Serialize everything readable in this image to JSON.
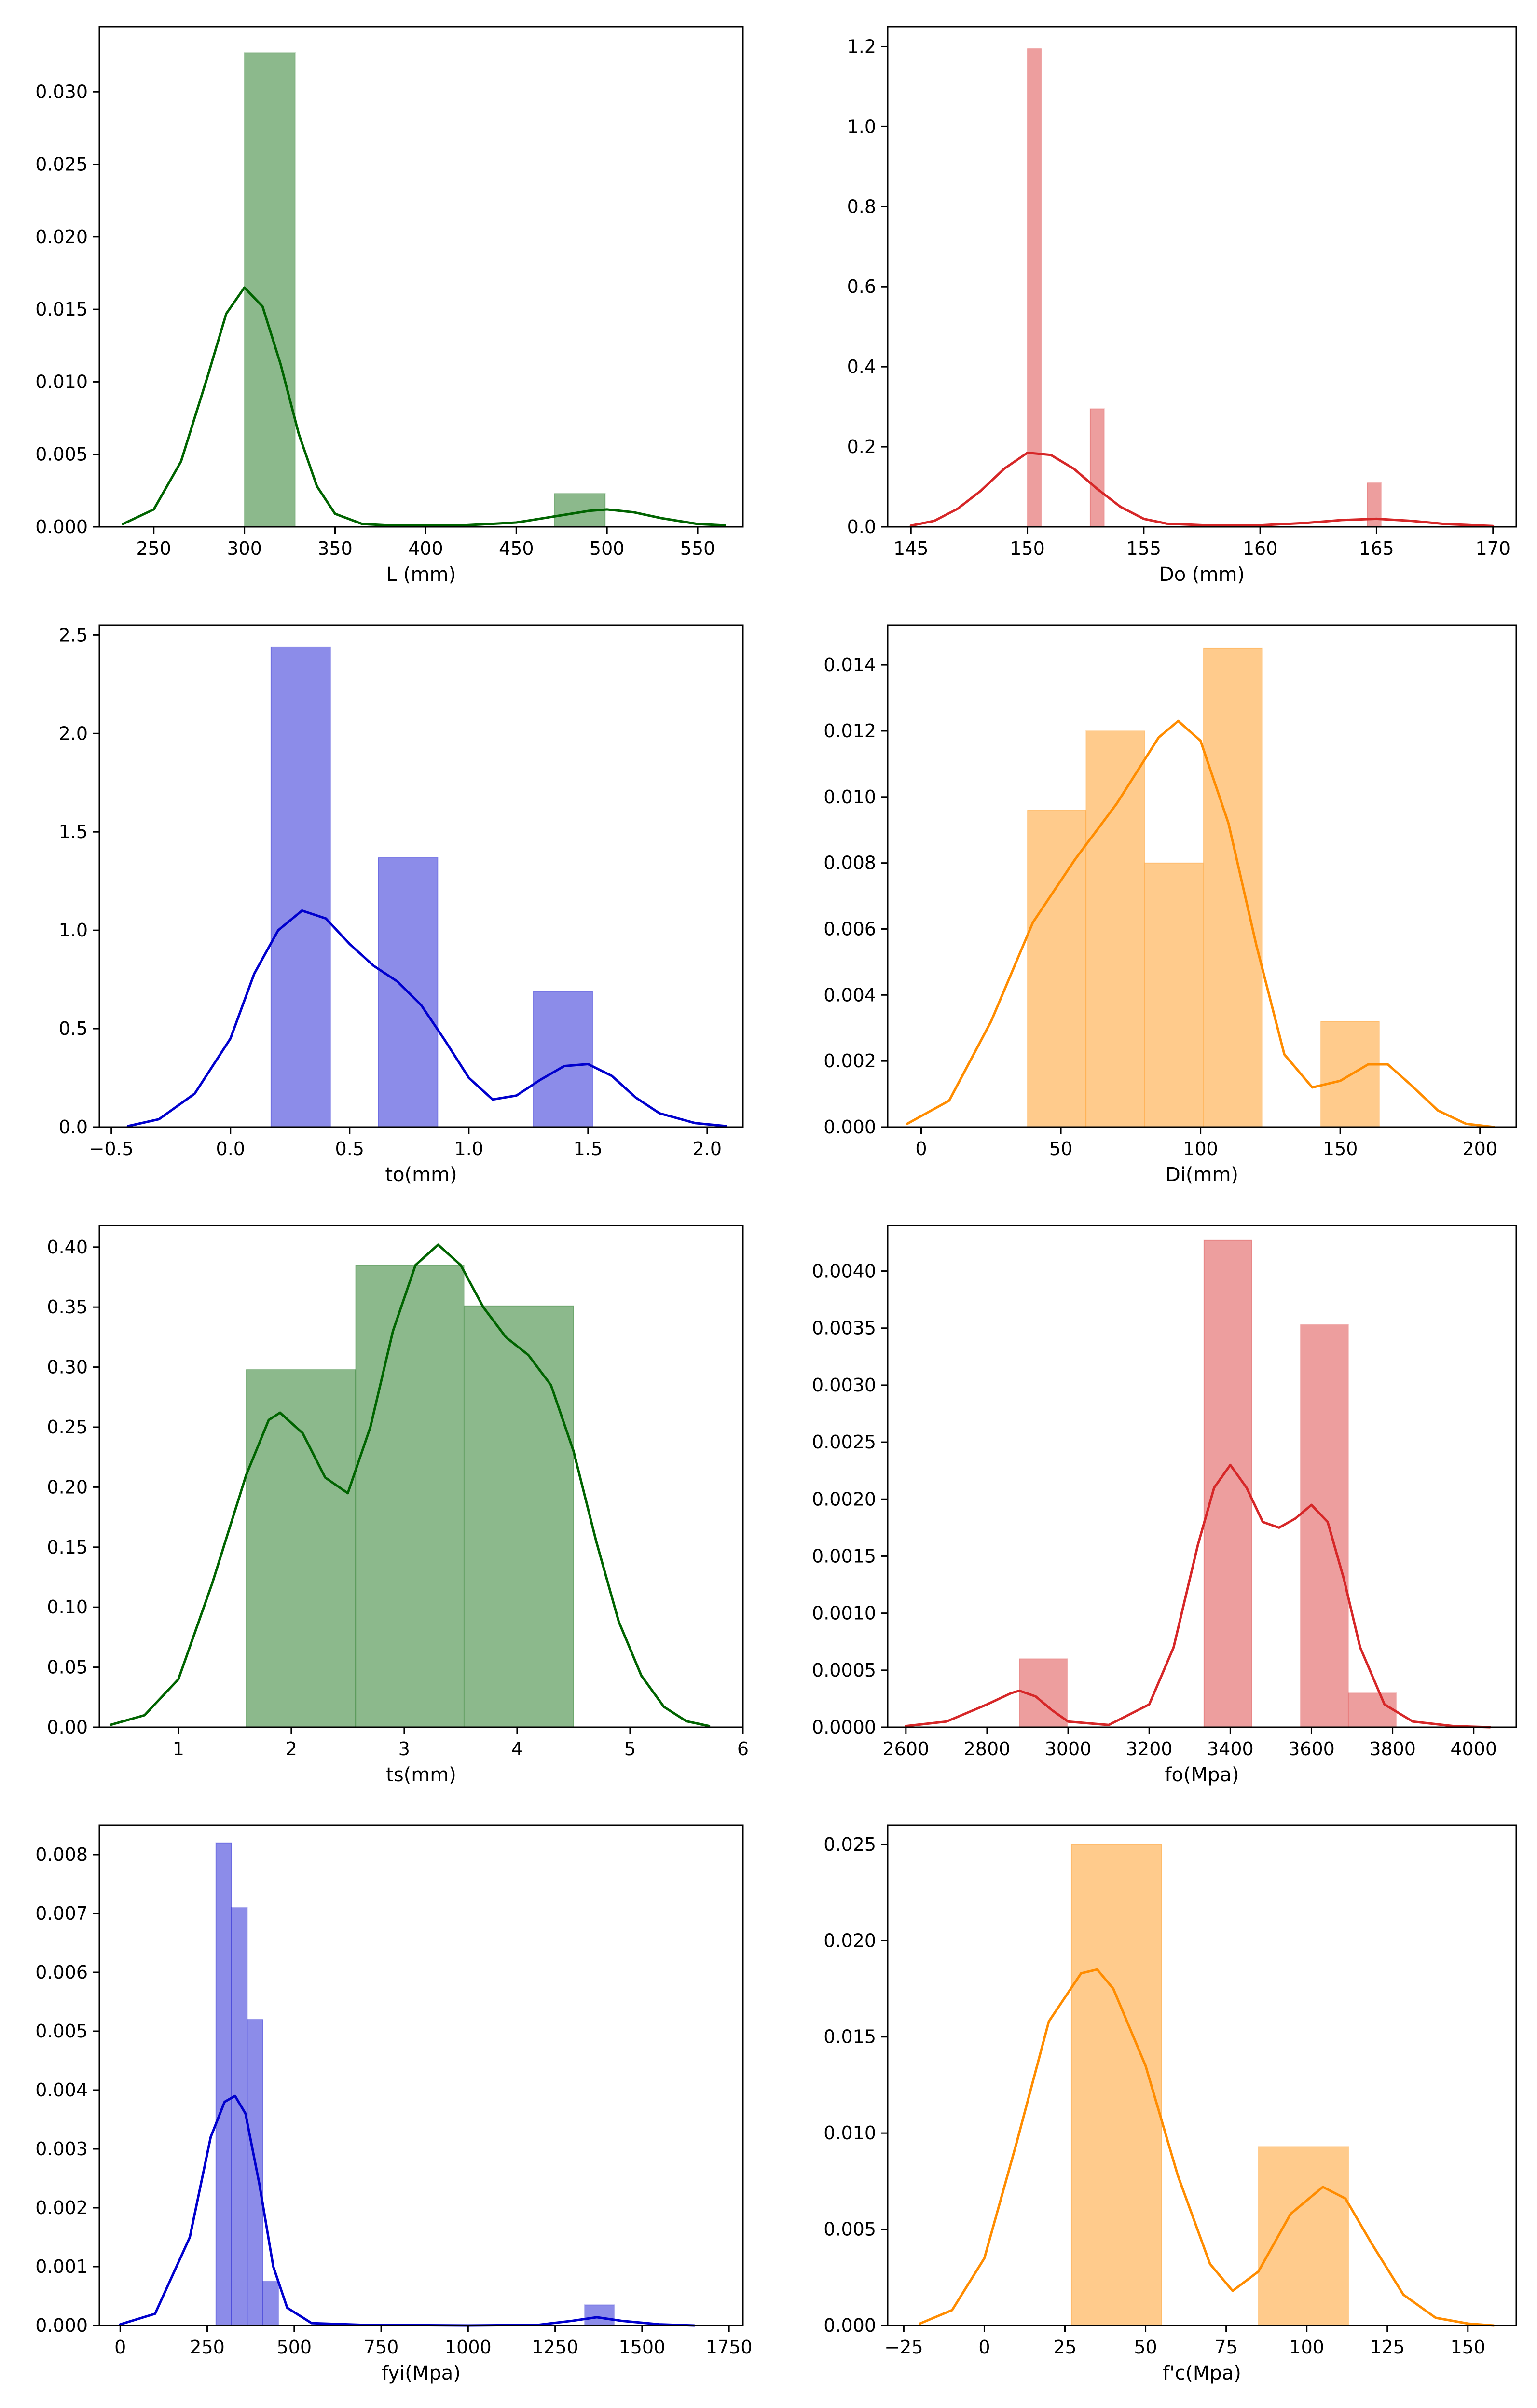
{
  "chart_data": [
    {
      "type": "histogram+kde",
      "xlabel": "L (mm)",
      "color": "#006400",
      "xlim": [
        220,
        575
      ],
      "ylim": [
        0,
        0.0345
      ],
      "xticks": [
        250,
        300,
        350,
        400,
        450,
        500,
        550
      ],
      "xtick_labels": [
        "250",
        "300",
        "350",
        "400",
        "450",
        "500",
        "550"
      ],
      "yticks": [
        0,
        0.005,
        0.01,
        0.015,
        0.02,
        0.025,
        0.03
      ],
      "ytick_labels": [
        "0.000",
        "0.005",
        "0.010",
        "0.015",
        "0.020",
        "0.025",
        "0.030"
      ],
      "bars": [
        {
          "x0": 300,
          "x1": 328,
          "height": 0.0327
        },
        {
          "x0": 471,
          "x1": 499,
          "height": 0.0023
        }
      ],
      "kde": [
        [
          233,
          0.0002
        ],
        [
          250,
          0.0012
        ],
        [
          265,
          0.0045
        ],
        [
          280,
          0.0105
        ],
        [
          290,
          0.0147
        ],
        [
          300,
          0.0165
        ],
        [
          310,
          0.0152
        ],
        [
          320,
          0.0112
        ],
        [
          330,
          0.0064
        ],
        [
          340,
          0.0028
        ],
        [
          350,
          0.0009
        ],
        [
          365,
          0.0002
        ],
        [
          380,
          0.0001
        ],
        [
          420,
          0.0001
        ],
        [
          450,
          0.0003
        ],
        [
          470,
          0.0007
        ],
        [
          490,
          0.0011
        ],
        [
          500,
          0.0012
        ],
        [
          515,
          0.001
        ],
        [
          530,
          0.0006
        ],
        [
          550,
          0.0002
        ],
        [
          565,
          0.0001
        ]
      ]
    },
    {
      "type": "histogram+kde",
      "xlabel": "Do (mm)",
      "color": "#d62728",
      "xlim": [
        144,
        171
      ],
      "ylim": [
        0,
        1.25
      ],
      "xticks": [
        145,
        150,
        155,
        160,
        165,
        170
      ],
      "xtick_labels": [
        "145",
        "150",
        "155",
        "160",
        "165",
        "170"
      ],
      "yticks": [
        0,
        0.2,
        0.4,
        0.6,
        0.8,
        1.0,
        1.2
      ],
      "ytick_labels": [
        "0.0",
        "0.2",
        "0.4",
        "0.6",
        "0.8",
        "1.0",
        "1.2"
      ],
      "bars": [
        {
          "x0": 150.0,
          "x1": 150.6,
          "height": 1.195
        },
        {
          "x0": 152.7,
          "x1": 153.3,
          "height": 0.295
        },
        {
          "x0": 164.6,
          "x1": 165.2,
          "height": 0.11
        }
      ],
      "kde": [
        [
          145,
          0.003
        ],
        [
          146,
          0.015
        ],
        [
          147,
          0.045
        ],
        [
          148,
          0.09
        ],
        [
          149,
          0.145
        ],
        [
          150,
          0.185
        ],
        [
          151,
          0.18
        ],
        [
          152,
          0.145
        ],
        [
          153,
          0.095
        ],
        [
          154,
          0.05
        ],
        [
          155,
          0.02
        ],
        [
          156,
          0.008
        ],
        [
          158,
          0.003
        ],
        [
          160,
          0.004
        ],
        [
          162,
          0.01
        ],
        [
          163.5,
          0.017
        ],
        [
          165,
          0.02
        ],
        [
          166.5,
          0.015
        ],
        [
          168,
          0.007
        ],
        [
          170,
          0.002
        ]
      ]
    },
    {
      "type": "histogram+kde",
      "xlabel": "to(mm)",
      "color": "#0000cd",
      "xlim": [
        -0.55,
        2.15
      ],
      "ylim": [
        0,
        2.55
      ],
      "xticks": [
        -0.5,
        0,
        0.5,
        1,
        1.5,
        2
      ],
      "xtick_labels": [
        "−0.5",
        "0.0",
        "0.5",
        "1.0",
        "1.5",
        "2.0"
      ],
      "yticks": [
        0,
        0.5,
        1,
        1.5,
        2,
        2.5
      ],
      "ytick_labels": [
        "0.0",
        "0.5",
        "1.0",
        "1.5",
        "2.0",
        "2.5"
      ],
      "bars": [
        {
          "x0": 0.17,
          "x1": 0.42,
          "height": 2.44
        },
        {
          "x0": 0.62,
          "x1": 0.87,
          "height": 1.37
        },
        {
          "x0": 1.27,
          "x1": 1.52,
          "height": 0.69
        }
      ],
      "kde": [
        [
          -0.43,
          0.005
        ],
        [
          -0.3,
          0.04
        ],
        [
          -0.15,
          0.17
        ],
        [
          0,
          0.45
        ],
        [
          0.1,
          0.78
        ],
        [
          0.2,
          1.0
        ],
        [
          0.3,
          1.1
        ],
        [
          0.4,
          1.06
        ],
        [
          0.5,
          0.93
        ],
        [
          0.6,
          0.82
        ],
        [
          0.7,
          0.74
        ],
        [
          0.8,
          0.62
        ],
        [
          0.9,
          0.44
        ],
        [
          1.0,
          0.25
        ],
        [
          1.1,
          0.14
        ],
        [
          1.2,
          0.16
        ],
        [
          1.3,
          0.24
        ],
        [
          1.4,
          0.31
        ],
        [
          1.5,
          0.32
        ],
        [
          1.6,
          0.26
        ],
        [
          1.7,
          0.15
        ],
        [
          1.8,
          0.07
        ],
        [
          1.95,
          0.02
        ],
        [
          2.08,
          0.005
        ]
      ]
    },
    {
      "type": "histogram+kde",
      "xlabel": "Di(mm)",
      "color": "#ff8c00",
      "xlim": [
        -12,
        213
      ],
      "ylim": [
        0,
        0.0152
      ],
      "xticks": [
        0,
        50,
        100,
        150,
        200
      ],
      "xtick_labels": [
        "0",
        "50",
        "100",
        "150",
        "200"
      ],
      "yticks": [
        0,
        0.002,
        0.004,
        0.006,
        0.008,
        0.01,
        0.012,
        0.014
      ],
      "ytick_labels": [
        "0.000",
        "0.002",
        "0.004",
        "0.006",
        "0.008",
        "0.010",
        "0.012",
        "0.014"
      ],
      "bars": [
        {
          "x0": 38,
          "x1": 59,
          "height": 0.0096
        },
        {
          "x0": 59,
          "x1": 80,
          "height": 0.012
        },
        {
          "x0": 80,
          "x1": 101,
          "height": 0.008
        },
        {
          "x0": 101,
          "x1": 122,
          "height": 0.0145
        },
        {
          "x0": 143,
          "x1": 164,
          "height": 0.0032
        }
      ],
      "kde": [
        [
          -5,
          0.0001
        ],
        [
          10,
          0.0008
        ],
        [
          25,
          0.0032
        ],
        [
          40,
          0.0062
        ],
        [
          55,
          0.0081
        ],
        [
          70,
          0.0098
        ],
        [
          85,
          0.0118
        ],
        [
          92,
          0.0123
        ],
        [
          100,
          0.0117
        ],
        [
          110,
          0.0092
        ],
        [
          120,
          0.0055
        ],
        [
          130,
          0.0022
        ],
        [
          140,
          0.0012
        ],
        [
          150,
          0.0014
        ],
        [
          160,
          0.0019
        ],
        [
          167,
          0.0019
        ],
        [
          175,
          0.0013
        ],
        [
          185,
          0.0005
        ],
        [
          195,
          0.0001
        ],
        [
          205,
          0.0
        ]
      ]
    },
    {
      "type": "histogram+kde",
      "xlabel": "ts(mm)",
      "color": "#006400",
      "xlim": [
        0.3,
        6.0
      ],
      "ylim": [
        0,
        0.418
      ],
      "xticks": [
        1,
        2,
        3,
        4,
        5,
        6
      ],
      "xtick_labels": [
        "1",
        "2",
        "3",
        "4",
        "5",
        "6"
      ],
      "yticks": [
        0,
        0.05,
        0.1,
        0.15,
        0.2,
        0.25,
        0.3,
        0.35,
        0.4
      ],
      "ytick_labels": [
        "0.00",
        "0.05",
        "0.10",
        "0.15",
        "0.20",
        "0.25",
        "0.30",
        "0.35",
        "0.40"
      ],
      "bars": [
        {
          "x0": 1.6,
          "x1": 2.57,
          "height": 0.298
        },
        {
          "x0": 2.57,
          "x1": 3.53,
          "height": 0.385
        },
        {
          "x0": 3.53,
          "x1": 4.5,
          "height": 0.351
        }
      ],
      "kde": [
        [
          0.4,
          0.002
        ],
        [
          0.7,
          0.01
        ],
        [
          1.0,
          0.04
        ],
        [
          1.3,
          0.12
        ],
        [
          1.6,
          0.21
        ],
        [
          1.8,
          0.256
        ],
        [
          1.9,
          0.262
        ],
        [
          2.1,
          0.245
        ],
        [
          2.3,
          0.208
        ],
        [
          2.5,
          0.195
        ],
        [
          2.7,
          0.25
        ],
        [
          2.9,
          0.33
        ],
        [
          3.1,
          0.385
        ],
        [
          3.3,
          0.402
        ],
        [
          3.5,
          0.385
        ],
        [
          3.7,
          0.35
        ],
        [
          3.9,
          0.325
        ],
        [
          4.1,
          0.31
        ],
        [
          4.3,
          0.285
        ],
        [
          4.5,
          0.23
        ],
        [
          4.7,
          0.155
        ],
        [
          4.9,
          0.088
        ],
        [
          5.1,
          0.043
        ],
        [
          5.3,
          0.017
        ],
        [
          5.5,
          0.005
        ],
        [
          5.7,
          0.001
        ]
      ]
    },
    {
      "type": "histogram+kde",
      "xlabel": "fo(Mpa)",
      "color": "#d62728",
      "xlim": [
        2555,
        4105
      ],
      "ylim": [
        0,
        0.0044
      ],
      "xticks": [
        2600,
        2800,
        3000,
        3200,
        3400,
        3600,
        3800,
        4000
      ],
      "xtick_labels": [
        "2600",
        "2800",
        "3000",
        "3200",
        "3400",
        "3600",
        "3800",
        "4000"
      ],
      "yticks": [
        0,
        0.0005,
        0.001,
        0.0015,
        0.002,
        0.0025,
        0.003,
        0.0035,
        0.004
      ],
      "ytick_labels": [
        "0.0000",
        "0.0005",
        "0.0010",
        "0.0015",
        "0.0020",
        "0.0025",
        "0.0030",
        "0.0035",
        "0.0040"
      ],
      "bars": [
        {
          "x0": 2880,
          "x1": 2998,
          "height": 0.0006
        },
        {
          "x0": 3335,
          "x1": 3453,
          "height": 0.00427
        },
        {
          "x0": 3573,
          "x1": 3691,
          "height": 0.00353
        },
        {
          "x0": 3691,
          "x1": 3809,
          "height": 0.0003
        }
      ],
      "kde": [
        [
          2600,
          1e-05
        ],
        [
          2700,
          5e-05
        ],
        [
          2800,
          0.0002
        ],
        [
          2860,
          0.0003
        ],
        [
          2880,
          0.00032
        ],
        [
          2920,
          0.00027
        ],
        [
          2960,
          0.00015
        ],
        [
          3000,
          5e-05
        ],
        [
          3100,
          2e-05
        ],
        [
          3200,
          0.0002
        ],
        [
          3260,
          0.0007
        ],
        [
          3320,
          0.0016
        ],
        [
          3360,
          0.0021
        ],
        [
          3400,
          0.0023
        ],
        [
          3440,
          0.0021
        ],
        [
          3480,
          0.0018
        ],
        [
          3520,
          0.00175
        ],
        [
          3560,
          0.00183
        ],
        [
          3600,
          0.00195
        ],
        [
          3640,
          0.0018
        ],
        [
          3680,
          0.0013
        ],
        [
          3720,
          0.0007
        ],
        [
          3780,
          0.0002
        ],
        [
          3850,
          5e-05
        ],
        [
          3950,
          1e-05
        ],
        [
          4040,
          0.0
        ]
      ]
    },
    {
      "type": "histogram+kde",
      "xlabel": "fyi(Mpa)",
      "color": "#0000cd",
      "xlim": [
        -60,
        1790
      ],
      "ylim": [
        0,
        0.0085
      ],
      "xticks": [
        0,
        250,
        500,
        750,
        1000,
        1250,
        1500,
        1750
      ],
      "xtick_labels": [
        "0",
        "250",
        "500",
        "750",
        "1000",
        "1250",
        "1500",
        "1750"
      ],
      "yticks": [
        0,
        0.001,
        0.002,
        0.003,
        0.004,
        0.005,
        0.006,
        0.007,
        0.008
      ],
      "ytick_labels": [
        "0.000",
        "0.001",
        "0.002",
        "0.003",
        "0.004",
        "0.005",
        "0.006",
        "0.007",
        "0.008"
      ],
      "bars": [
        {
          "x0": 275,
          "x1": 320,
          "height": 0.0082
        },
        {
          "x0": 320,
          "x1": 365,
          "height": 0.0071
        },
        {
          "x0": 365,
          "x1": 410,
          "height": 0.0052
        },
        {
          "x0": 410,
          "x1": 455,
          "height": 0.00075
        },
        {
          "x0": 1335,
          "x1": 1420,
          "height": 0.00035
        }
      ],
      "kde": [
        [
          0,
          2e-05
        ],
        [
          100,
          0.0002
        ],
        [
          200,
          0.0015
        ],
        [
          260,
          0.0032
        ],
        [
          300,
          0.0038
        ],
        [
          330,
          0.0039
        ],
        [
          360,
          0.0036
        ],
        [
          400,
          0.0024
        ],
        [
          440,
          0.001
        ],
        [
          480,
          0.0003
        ],
        [
          550,
          4e-05
        ],
        [
          700,
          1e-05
        ],
        [
          1000,
          0.0
        ],
        [
          1200,
          1e-05
        ],
        [
          1300,
          8e-05
        ],
        [
          1370,
          0.00014
        ],
        [
          1440,
          8e-05
        ],
        [
          1550,
          2e-05
        ],
        [
          1650,
          0.0
        ]
      ]
    },
    {
      "type": "histogram+kde",
      "xlabel": "f'c(Mpa)",
      "color": "#ff8c00",
      "xlim": [
        -30,
        165
      ],
      "ylim": [
        0,
        0.026
      ],
      "xticks": [
        -25,
        0,
        25,
        50,
        75,
        100,
        125,
        150
      ],
      "xtick_labels": [
        "−25",
        "0",
        "25",
        "50",
        "75",
        "100",
        "125",
        "150"
      ],
      "yticks": [
        0,
        0.005,
        0.01,
        0.015,
        0.02,
        0.025
      ],
      "ytick_labels": [
        "0.000",
        "0.005",
        "0.010",
        "0.015",
        "0.020",
        "0.025"
      ],
      "bars": [
        {
          "x0": 27,
          "x1": 55,
          "height": 0.025
        },
        {
          "x0": 85,
          "x1": 113,
          "height": 0.0093
        }
      ],
      "kde": [
        [
          -20,
          0.0001
        ],
        [
          -10,
          0.0008
        ],
        [
          0,
          0.0035
        ],
        [
          10,
          0.0095
        ],
        [
          20,
          0.0158
        ],
        [
          30,
          0.0183
        ],
        [
          35,
          0.0185
        ],
        [
          40,
          0.0175
        ],
        [
          50,
          0.0135
        ],
        [
          60,
          0.0078
        ],
        [
          70,
          0.0032
        ],
        [
          77,
          0.0018
        ],
        [
          85,
          0.0028
        ],
        [
          95,
          0.0058
        ],
        [
          105,
          0.0072
        ],
        [
          112,
          0.0066
        ],
        [
          120,
          0.0043
        ],
        [
          130,
          0.0016
        ],
        [
          140,
          0.0004
        ],
        [
          150,
          0.0001
        ],
        [
          158,
          0.0
        ]
      ]
    }
  ]
}
